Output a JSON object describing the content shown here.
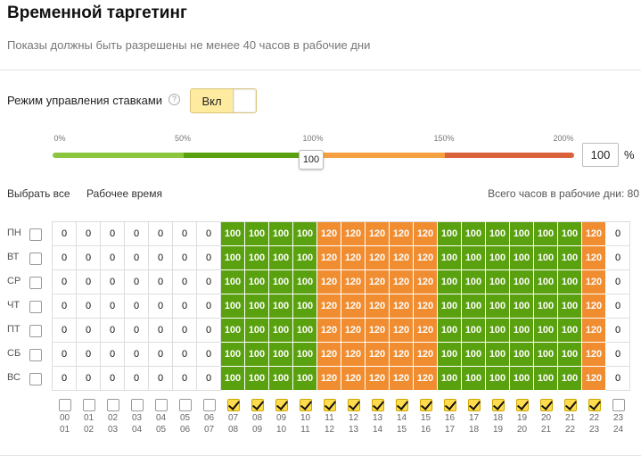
{
  "header": {
    "title": "Временной таргетинг",
    "subtitle": "Показы должны быть разрешены не менее 40 часов в рабочие дни"
  },
  "bid_mode": {
    "label": "Режим управления ставками",
    "help_icon": "question-circle-icon",
    "toggle_label": "Вкл"
  },
  "slider": {
    "ticks": [
      "0%",
      "50%",
      "100%",
      "150%",
      "200%"
    ],
    "value": "100",
    "input_value": "100",
    "unit": "%",
    "colors": [
      "#8cc63f",
      "#5aa10f",
      "#f5a040",
      "#f18d31",
      "#d9623a"
    ]
  },
  "actions": {
    "select_all": "Выбрать все",
    "work_time": "Рабочее время",
    "total_hours": "Всего часов в рабочие дни: 80"
  },
  "days": [
    "ПН",
    "ВТ",
    "СР",
    "ЧТ",
    "ПТ",
    "СБ",
    "ВС"
  ],
  "grid": {
    "hour_values": [
      0,
      0,
      0,
      0,
      0,
      0,
      0,
      100,
      100,
      100,
      100,
      120,
      120,
      120,
      120,
      120,
      100,
      100,
      100,
      100,
      100,
      100,
      120,
      0
    ],
    "colors": {
      "100": "green",
      "120": "orange",
      "0": "zero"
    }
  },
  "hours": {
    "top": [
      "00",
      "01",
      "02",
      "03",
      "04",
      "05",
      "06",
      "07",
      "08",
      "09",
      "10",
      "11",
      "12",
      "13",
      "14",
      "15",
      "16",
      "17",
      "18",
      "19",
      "20",
      "21",
      "22",
      "23"
    ],
    "bottom": [
      "01",
      "02",
      "03",
      "04",
      "05",
      "06",
      "07",
      "08",
      "09",
      "10",
      "11",
      "12",
      "13",
      "14",
      "15",
      "16",
      "17",
      "18",
      "19",
      "20",
      "21",
      "22",
      "23",
      "24"
    ],
    "checked": [
      false,
      false,
      false,
      false,
      false,
      false,
      false,
      true,
      true,
      true,
      true,
      true,
      true,
      true,
      true,
      true,
      true,
      true,
      true,
      true,
      true,
      true,
      true,
      false
    ]
  }
}
